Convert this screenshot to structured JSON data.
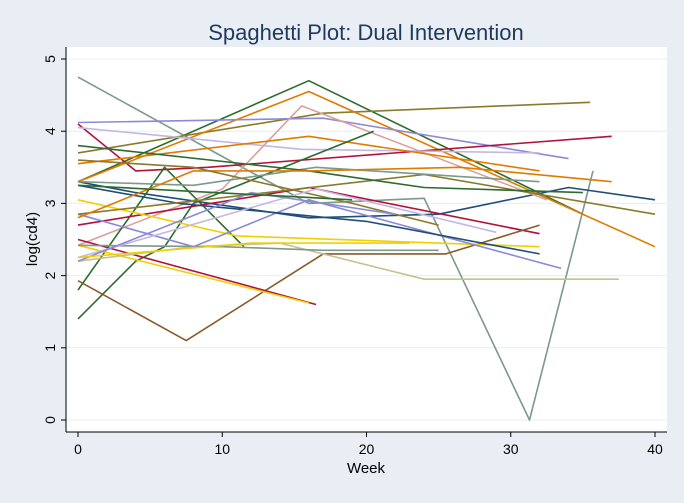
{
  "chart_data": {
    "type": "line",
    "title": "Spaghetti Plot: Dual Intervention",
    "xlabel": "Week",
    "ylabel": "log(cd4)",
    "xlim": [
      0,
      40
    ],
    "ylim": [
      0,
      5
    ],
    "xticks": [
      "0",
      "10",
      "20",
      "30",
      "40"
    ],
    "yticks": [
      "0",
      "1",
      "2",
      "3",
      "4",
      "5"
    ],
    "grid": "horizontal",
    "legend": "none",
    "colors": {
      "background": "#e8eef3",
      "plot_background": "#ffffff",
      "grid": "#e8eef3",
      "title": "#1e3a5f"
    },
    "series": [
      {
        "color": "#7a9a8a",
        "x": [
          0,
          10,
          16,
          24,
          31.3,
          35.7
        ],
        "y": [
          4.75,
          3.65,
          3.0,
          3.07,
          0.0,
          3.45
        ]
      },
      {
        "color": "#1f4e79",
        "x": [
          0,
          4,
          16,
          25,
          34,
          40
        ],
        "y": [
          3.3,
          3.15,
          2.8,
          2.85,
          3.22,
          3.05
        ]
      },
      {
        "color": "#2e6b2e",
        "x": [
          0,
          16,
          35
        ],
        "y": [
          3.3,
          4.7,
          2.85
        ]
      },
      {
        "color": "#8a7a2a",
        "x": [
          0,
          17,
          35.5
        ],
        "y": [
          3.7,
          4.25,
          4.4
        ]
      },
      {
        "color": "#e07b00",
        "x": [
          0,
          16,
          40
        ],
        "y": [
          3.3,
          4.55,
          2.4
        ]
      },
      {
        "color": "#8a8ad8",
        "x": [
          0,
          17,
          34
        ],
        "y": [
          4.12,
          4.18,
          3.62
        ]
      },
      {
        "color": "#b3103a",
        "x": [
          0,
          4,
          9,
          37
        ],
        "y": [
          4.1,
          3.45,
          3.5,
          3.93
        ]
      },
      {
        "color": "#c3b7e0",
        "x": [
          0,
          15.5,
          32
        ],
        "y": [
          4.05,
          3.75,
          3.7
        ]
      },
      {
        "color": "#d9a0a0",
        "x": [
          0,
          10,
          15.5,
          32.5
        ],
        "y": [
          2.42,
          3.2,
          4.35,
          3.05
        ]
      },
      {
        "color": "#e07b00",
        "x": [
          0,
          16,
          32
        ],
        "y": [
          3.55,
          3.93,
          3.45
        ]
      },
      {
        "color": "#2e6b2e",
        "x": [
          0,
          4,
          6,
          8,
          20.5
        ],
        "y": [
          1.4,
          2.2,
          2.4,
          3.0,
          4.0
        ]
      },
      {
        "color": "#2e6b2e",
        "x": [
          0,
          6,
          11.5
        ],
        "y": [
          1.8,
          3.5,
          2.4
        ]
      },
      {
        "color": "#b3103a",
        "x": [
          0,
          16,
          32
        ],
        "y": [
          2.7,
          3.22,
          2.58
        ]
      },
      {
        "color": "#8a5a2a",
        "x": [
          0,
          7.5,
          17,
          25.5,
          32
        ],
        "y": [
          1.93,
          1.1,
          2.3,
          2.3,
          2.7
        ]
      },
      {
        "color": "#b3103a",
        "x": [
          0,
          16.5
        ],
        "y": [
          2.5,
          1.6
        ]
      },
      {
        "color": "#f0d000",
        "x": [
          0,
          16
        ],
        "y": [
          2.42,
          1.62
        ]
      },
      {
        "color": "#f0d000",
        "x": [
          0,
          11,
          32
        ],
        "y": [
          3.05,
          2.55,
          2.4
        ]
      },
      {
        "color": "#c8c090",
        "x": [
          0,
          8,
          14,
          24,
          37.5
        ],
        "y": [
          2.2,
          2.4,
          2.45,
          1.95,
          1.95
        ]
      },
      {
        "color": "#7a9a8a",
        "x": [
          0,
          10,
          17,
          25
        ],
        "y": [
          2.42,
          2.4,
          2.35,
          2.35
        ]
      },
      {
        "color": "#8a8ad8",
        "x": [
          0,
          8,
          16,
          33.5
        ],
        "y": [
          2.85,
          2.4,
          3.05,
          2.1
        ]
      },
      {
        "color": "#1f4e79",
        "x": [
          0,
          7,
          20,
          32
        ],
        "y": [
          3.25,
          3.0,
          2.75,
          2.3
        ]
      },
      {
        "color": "#8a7a2a",
        "x": [
          0,
          24,
          40
        ],
        "y": [
          2.85,
          3.4,
          2.85
        ]
      },
      {
        "color": "#7a9a8a",
        "x": [
          0,
          8,
          16.5,
          32
        ],
        "y": [
          3.3,
          3.25,
          3.5,
          3.3
        ]
      },
      {
        "color": "#2e6b2e",
        "x": [
          0,
          16,
          24,
          35
        ],
        "y": [
          3.8,
          3.45,
          3.22,
          3.15
        ]
      },
      {
        "color": "#e07b00",
        "x": [
          0,
          8,
          16,
          26.5,
          37
        ],
        "y": [
          2.8,
          3.45,
          3.45,
          3.5,
          3.3
        ]
      },
      {
        "color": "#8a7a2a",
        "x": [
          0,
          8,
          19,
          25
        ],
        "y": [
          3.6,
          3.5,
          3.0,
          2.7
        ]
      },
      {
        "color": "#c3b7e0",
        "x": [
          0,
          16.5,
          29
        ],
        "y": [
          2.25,
          3.2,
          2.6
        ]
      },
      {
        "color": "#8a8ad8",
        "x": [
          0,
          12,
          22
        ],
        "y": [
          2.2,
          3.15,
          2.85
        ]
      },
      {
        "color": "#2e6b2e",
        "x": [
          0,
          19
        ],
        "y": [
          3.25,
          3.05
        ]
      },
      {
        "color": "#f0d000",
        "x": [
          0,
          12,
          23
        ],
        "y": [
          2.25,
          2.45,
          2.45
        ]
      }
    ]
  }
}
